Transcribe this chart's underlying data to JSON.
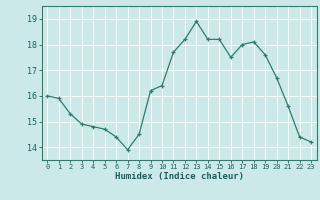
{
  "x": [
    0,
    1,
    2,
    3,
    4,
    5,
    6,
    7,
    8,
    9,
    10,
    11,
    12,
    13,
    14,
    15,
    16,
    17,
    18,
    19,
    20,
    21,
    22,
    23
  ],
  "y": [
    16.0,
    15.9,
    15.3,
    14.9,
    14.8,
    14.7,
    14.4,
    13.9,
    14.5,
    16.2,
    16.4,
    17.7,
    18.2,
    18.9,
    18.2,
    18.2,
    17.5,
    18.0,
    18.1,
    17.6,
    16.7,
    15.6,
    14.4,
    14.2
  ],
  "xlabel": "Humidex (Indice chaleur)",
  "ylim": [
    13.5,
    19.5
  ],
  "xlim": [
    -0.5,
    23.5
  ],
  "yticks": [
    14,
    15,
    16,
    17,
    18,
    19
  ],
  "xticks": [
    0,
    1,
    2,
    3,
    4,
    5,
    6,
    7,
    8,
    9,
    10,
    11,
    12,
    13,
    14,
    15,
    16,
    17,
    18,
    19,
    20,
    21,
    22,
    23
  ],
  "line_color": "#2e7d6e",
  "marker": "+",
  "bg_color": "#cce9e9",
  "grid_color": "#ffffff",
  "label_color": "#1a5f5f",
  "tick_color": "#2e7d6e",
  "spine_color": "#2e7d6e"
}
